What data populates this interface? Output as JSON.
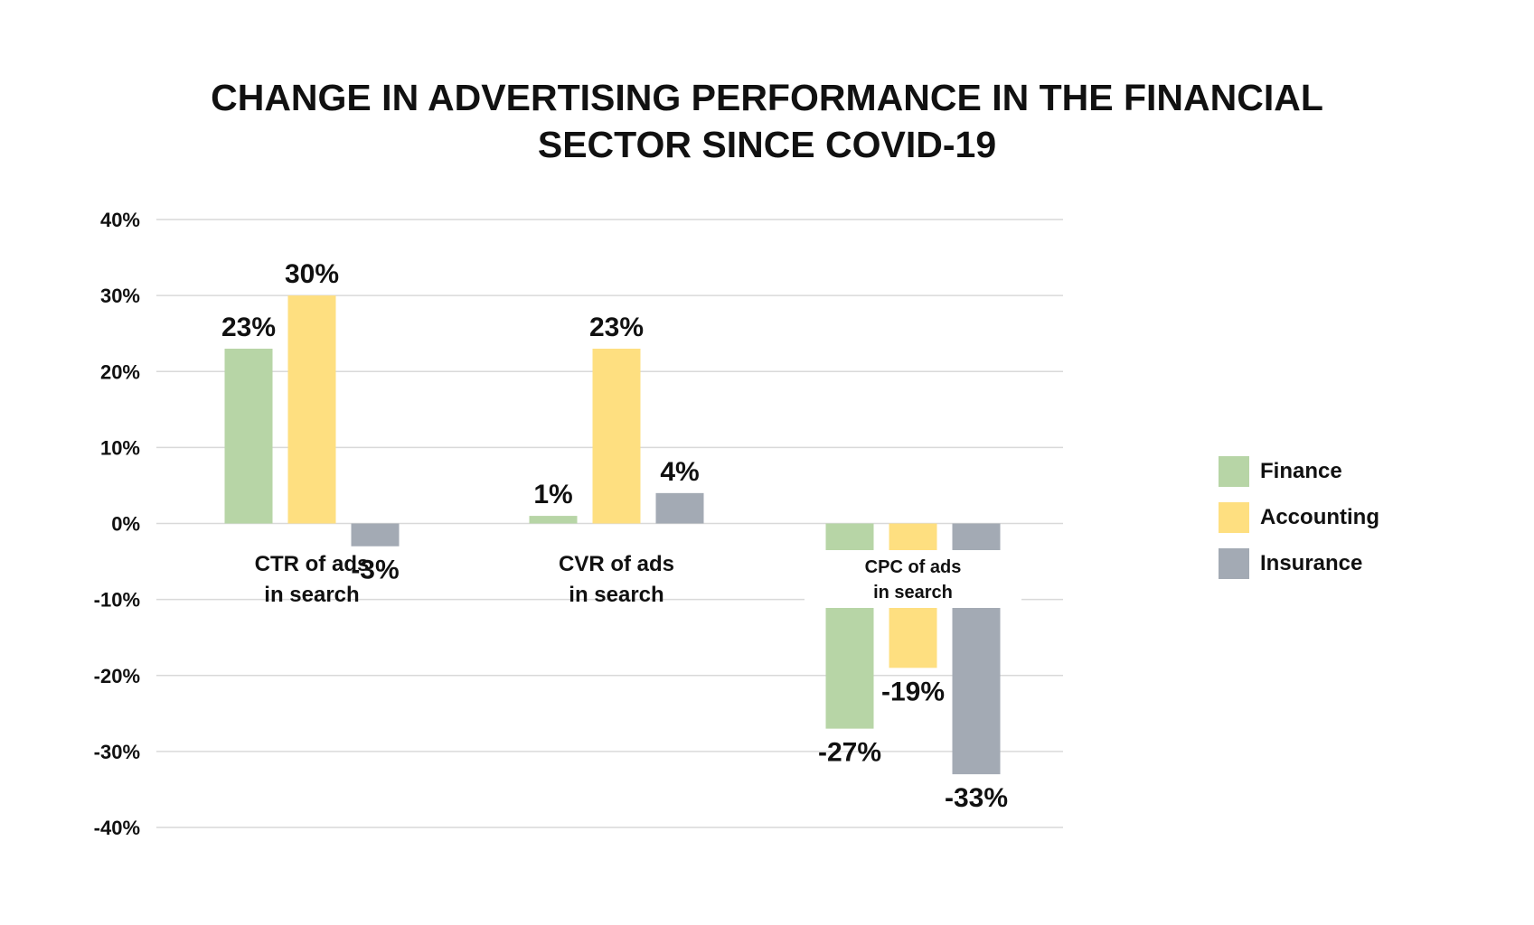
{
  "title": {
    "line1": "CHANGE IN ADVERTISING PERFORMANCE IN THE FINANCIAL",
    "line2": "SECTOR SINCE COVID-19"
  },
  "colors": {
    "Finance": "#b7d5a6",
    "Accounting": "#fedf80",
    "Insurance": "#a3aab4",
    "grid": "#d9d9d9"
  },
  "chart_data": {
    "type": "bar",
    "title": "CHANGE IN ADVERTISING PERFORMANCE IN THE FINANCIAL SECTOR SINCE COVID-19",
    "categories": [
      [
        "CTR of ads",
        "in search"
      ],
      [
        "CVR of ads",
        "in search"
      ],
      [
        "CPC of ads",
        "in search"
      ]
    ],
    "series": [
      {
        "name": "Finance",
        "values": [
          23,
          1,
          -27
        ],
        "labels": [
          "23%",
          "1%",
          "-27%"
        ]
      },
      {
        "name": "Accounting",
        "values": [
          30,
          23,
          -19
        ],
        "labels": [
          "30%",
          "23%",
          "-19%"
        ]
      },
      {
        "name": "Insurance",
        "values": [
          -3,
          4,
          -33
        ],
        "labels": [
          "-3%",
          "4%",
          "-33%"
        ]
      }
    ],
    "y_ticks": [
      "40%",
      "30%",
      "20%",
      "10%",
      "0%",
      "-10%",
      "-20%",
      "-30%",
      "-40%"
    ],
    "y_tick_values": [
      40,
      30,
      20,
      10,
      0,
      -10,
      -20,
      -30,
      -40
    ],
    "ylim": [
      -40,
      40
    ],
    "xlabel": "",
    "ylabel": "",
    "grid": true,
    "legend": "right"
  }
}
